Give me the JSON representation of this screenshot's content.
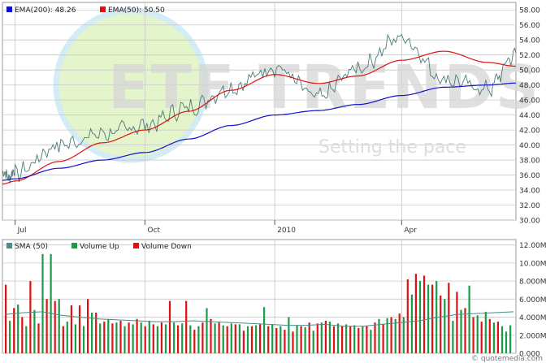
{
  "watermark": {
    "brand": "ETF TRENDS",
    "tagline": "Setting the pace"
  },
  "credit": {
    "text": "© quotemedia.com"
  },
  "colors": {
    "ema200": "#1010c8",
    "ema50": "#dd1111",
    "price": "#4a7a78",
    "sma": "#4a8c88",
    "volume_up": "#1a9b4a",
    "volume_down": "#dd1111",
    "grid": "#c8c8c8",
    "frame": "#9a9a9a",
    "watermark_circle": "#d9f0b8"
  },
  "chart_data": [
    {
      "type": "line",
      "legend": [
        {
          "name": "EMA(200): 48.26",
          "color": "#1010c8"
        },
        {
          "name": "EMA(50): 50.50",
          "color": "#dd1111"
        }
      ],
      "x": [
        "2009-06-22",
        "2009-07-01",
        "2009-08-01",
        "2009-09-01",
        "2009-10-01",
        "2009-11-01",
        "2009-12-01",
        "2010-01-01",
        "2010-02-01",
        "2010-03-01",
        "2010-04-01",
        "2010-05-01",
        "2010-06-01",
        "2010-06-21"
      ],
      "x_ticks": [
        "Jul",
        "Oct",
        "2010",
        "Apr"
      ],
      "y_ticks": [
        "30.00",
        "32.00",
        "34.00",
        "36.00",
        "38.00",
        "40.00",
        "42.00",
        "44.00",
        "46.00",
        "48.00",
        "50.00",
        "52.00",
        "54.00",
        "56.00",
        "58.00"
      ],
      "ylim": [
        30,
        59
      ],
      "grid": true,
      "legend_position": "top-left",
      "series": [
        {
          "key": "price",
          "values": [
            36.0,
            36.2,
            40.0,
            41.5,
            42.6,
            45.0,
            47.6,
            50.4,
            46.3,
            50.3,
            54.4,
            48.8,
            47.4,
            52.2
          ]
        },
        {
          "key": "ema200",
          "values": [
            35.3,
            35.5,
            36.9,
            38.0,
            39.0,
            40.8,
            42.6,
            44.0,
            44.6,
            45.4,
            46.6,
            47.7,
            48.0,
            48.26
          ]
        },
        {
          "key": "ema50",
          "values": [
            34.8,
            35.2,
            37.8,
            40.3,
            42.0,
            44.5,
            47.3,
            49.4,
            48.2,
            49.2,
            51.3,
            52.5,
            51.0,
            50.5
          ]
        }
      ]
    },
    {
      "type": "bar",
      "legend": [
        {
          "name": "SMA (50)",
          "color": "#4a8c88"
        },
        {
          "name": "Volume Up",
          "color": "#1a9b4a"
        },
        {
          "name": "Volume Down",
          "color": "#dd1111"
        }
      ],
      "y_ticks": [
        "0.000",
        "2.000M",
        "4.000M",
        "6.000M",
        "8.000M",
        "10.00M",
        "12.00M"
      ],
      "ylim": [
        0,
        12.6
      ],
      "units": "millions",
      "grid": true,
      "legend_position": "top-left",
      "volume_up": [
        3.6,
        5.4,
        3.0,
        4.8,
        11.0,
        11.0,
        6.0,
        3.5,
        3.2,
        3.0,
        4.5,
        3.3,
        3.8,
        3.4,
        3.0,
        3.2,
        3.4,
        3.6,
        3.0,
        3.2,
        3.4,
        3.3,
        3.1,
        3.0,
        5.0,
        3.3,
        3.1,
        3.3,
        3.2,
        3.0,
        3.1,
        5.1,
        3.2,
        3.0,
        4.0,
        3.1,
        2.9,
        2.5,
        3.4,
        3.5,
        3.3,
        3.2,
        3.1,
        3.0,
        2.6,
        3.8,
        3.9,
        3.8,
        4.0,
        6.5,
        8.0,
        7.6,
        8.0,
        6.0,
        3.6,
        4.8,
        7.5,
        4.2,
        4.6,
        3.4,
        3.0,
        2.4,
        3.1
      ],
      "volume_down": [
        7.6,
        5.0,
        4.0,
        8.0,
        3.3,
        6.0,
        5.8,
        3.0,
        5.3,
        5.3,
        6.0,
        4.5,
        3.5,
        3.3,
        3.6,
        3.4,
        3.8,
        3.0,
        3.2,
        3.4,
        5.8,
        3.1,
        5.8,
        2.6,
        3.4,
        3.8,
        3.4,
        3.0,
        3.2,
        2.5,
        3.0,
        3.2,
        3.0,
        2.8,
        2.6,
        2.4,
        3.0,
        3.4,
        3.3,
        3.6,
        3.0,
        3.0,
        3.0,
        2.8,
        3.0,
        3.4,
        3.2,
        4.0,
        4.4,
        8.2,
        8.8,
        8.6,
        7.6,
        6.4,
        7.8,
        6.8,
        5.0,
        4.0,
        3.5,
        3.8,
        3.5
      ],
      "sma": [
        4.3,
        4.5,
        4.6,
        4.2,
        4.0,
        3.8,
        3.7,
        3.6,
        3.5,
        3.5,
        3.6,
        3.5,
        3.4,
        3.3,
        3.2,
        3.1,
        3.1,
        3.2,
        3.0,
        3.0,
        3.2,
        3.4,
        3.6,
        4.0,
        4.3,
        4.4,
        4.5,
        4.6
      ]
    }
  ]
}
